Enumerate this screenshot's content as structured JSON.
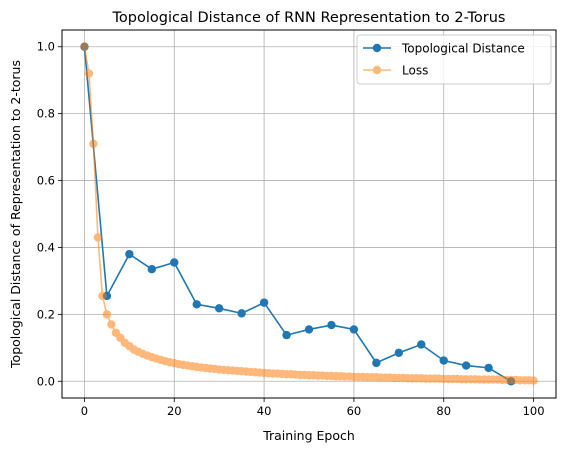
{
  "chart_data": {
    "type": "line",
    "title": "Topological Distance of RNN Representation to 2-Torus",
    "xlabel": "Training Epoch",
    "ylabel": "Topological Distance of Representation to 2-torus",
    "xlim": [
      -5,
      105
    ],
    "ylim": [
      -0.05,
      1.05
    ],
    "xticks": [
      0,
      20,
      40,
      60,
      80,
      100
    ],
    "yticks": [
      0.0,
      0.2,
      0.4,
      0.6,
      0.8,
      1.0
    ],
    "xtick_labels": [
      "0",
      "20",
      "40",
      "60",
      "80",
      "100"
    ],
    "ytick_labels": [
      "0.0",
      "0.2",
      "0.4",
      "0.6",
      "0.8",
      "1.0"
    ],
    "grid": true,
    "legend_position": "top-right",
    "series": [
      {
        "name": "Topological Distance",
        "color": "#1f77b4",
        "alpha": 1.0,
        "x": [
          0,
          5,
          10,
          15,
          20,
          25,
          30,
          35,
          40,
          45,
          50,
          55,
          60,
          65,
          70,
          75,
          80,
          85,
          90,
          95
        ],
        "y": [
          1.0,
          0.255,
          0.38,
          0.335,
          0.355,
          0.23,
          0.218,
          0.203,
          0.235,
          0.138,
          0.155,
          0.168,
          0.155,
          0.055,
          0.085,
          0.11,
          0.062,
          0.047,
          0.04,
          0.0
        ]
      },
      {
        "name": "Loss",
        "color": "#ff7f0e",
        "alpha": 0.55,
        "x": [
          0,
          1,
          2,
          3,
          4,
          5,
          6,
          7,
          8,
          9,
          10,
          11,
          12,
          13,
          14,
          15,
          16,
          17,
          18,
          19,
          20,
          21,
          22,
          23,
          24,
          25,
          26,
          27,
          28,
          29,
          30,
          31,
          32,
          33,
          34,
          35,
          36,
          37,
          38,
          39,
          40,
          41,
          42,
          43,
          44,
          45,
          46,
          47,
          48,
          49,
          50,
          51,
          52,
          53,
          54,
          55,
          56,
          57,
          58,
          59,
          60,
          61,
          62,
          63,
          64,
          65,
          66,
          67,
          68,
          69,
          70,
          71,
          72,
          73,
          74,
          75,
          76,
          77,
          78,
          79,
          80,
          81,
          82,
          83,
          84,
          85,
          86,
          87,
          88,
          89,
          90,
          91,
          92,
          93,
          94,
          95,
          96,
          97,
          98,
          99,
          100
        ],
        "y": [
          1.0,
          0.92,
          0.71,
          0.43,
          0.255,
          0.2,
          0.17,
          0.145,
          0.13,
          0.115,
          0.105,
          0.095,
          0.088,
          0.082,
          0.077,
          0.072,
          0.068,
          0.064,
          0.06,
          0.057,
          0.054,
          0.051,
          0.049,
          0.047,
          0.045,
          0.043,
          0.041,
          0.04,
          0.038,
          0.037,
          0.035,
          0.034,
          0.033,
          0.032,
          0.031,
          0.03,
          0.029,
          0.028,
          0.027,
          0.026,
          0.025,
          0.024,
          0.023,
          0.023,
          0.022,
          0.021,
          0.021,
          0.02,
          0.019,
          0.019,
          0.018,
          0.018,
          0.017,
          0.017,
          0.016,
          0.016,
          0.015,
          0.015,
          0.014,
          0.014,
          0.013,
          0.013,
          0.013,
          0.012,
          0.012,
          0.012,
          0.011,
          0.011,
          0.011,
          0.01,
          0.01,
          0.01,
          0.009,
          0.009,
          0.009,
          0.009,
          0.008,
          0.008,
          0.008,
          0.008,
          0.007,
          0.007,
          0.007,
          0.007,
          0.006,
          0.006,
          0.006,
          0.006,
          0.005,
          0.005,
          0.005,
          0.005,
          0.005,
          0.004,
          0.004,
          0.004,
          0.004,
          0.003,
          0.003,
          0.003,
          0.002
        ]
      }
    ]
  }
}
